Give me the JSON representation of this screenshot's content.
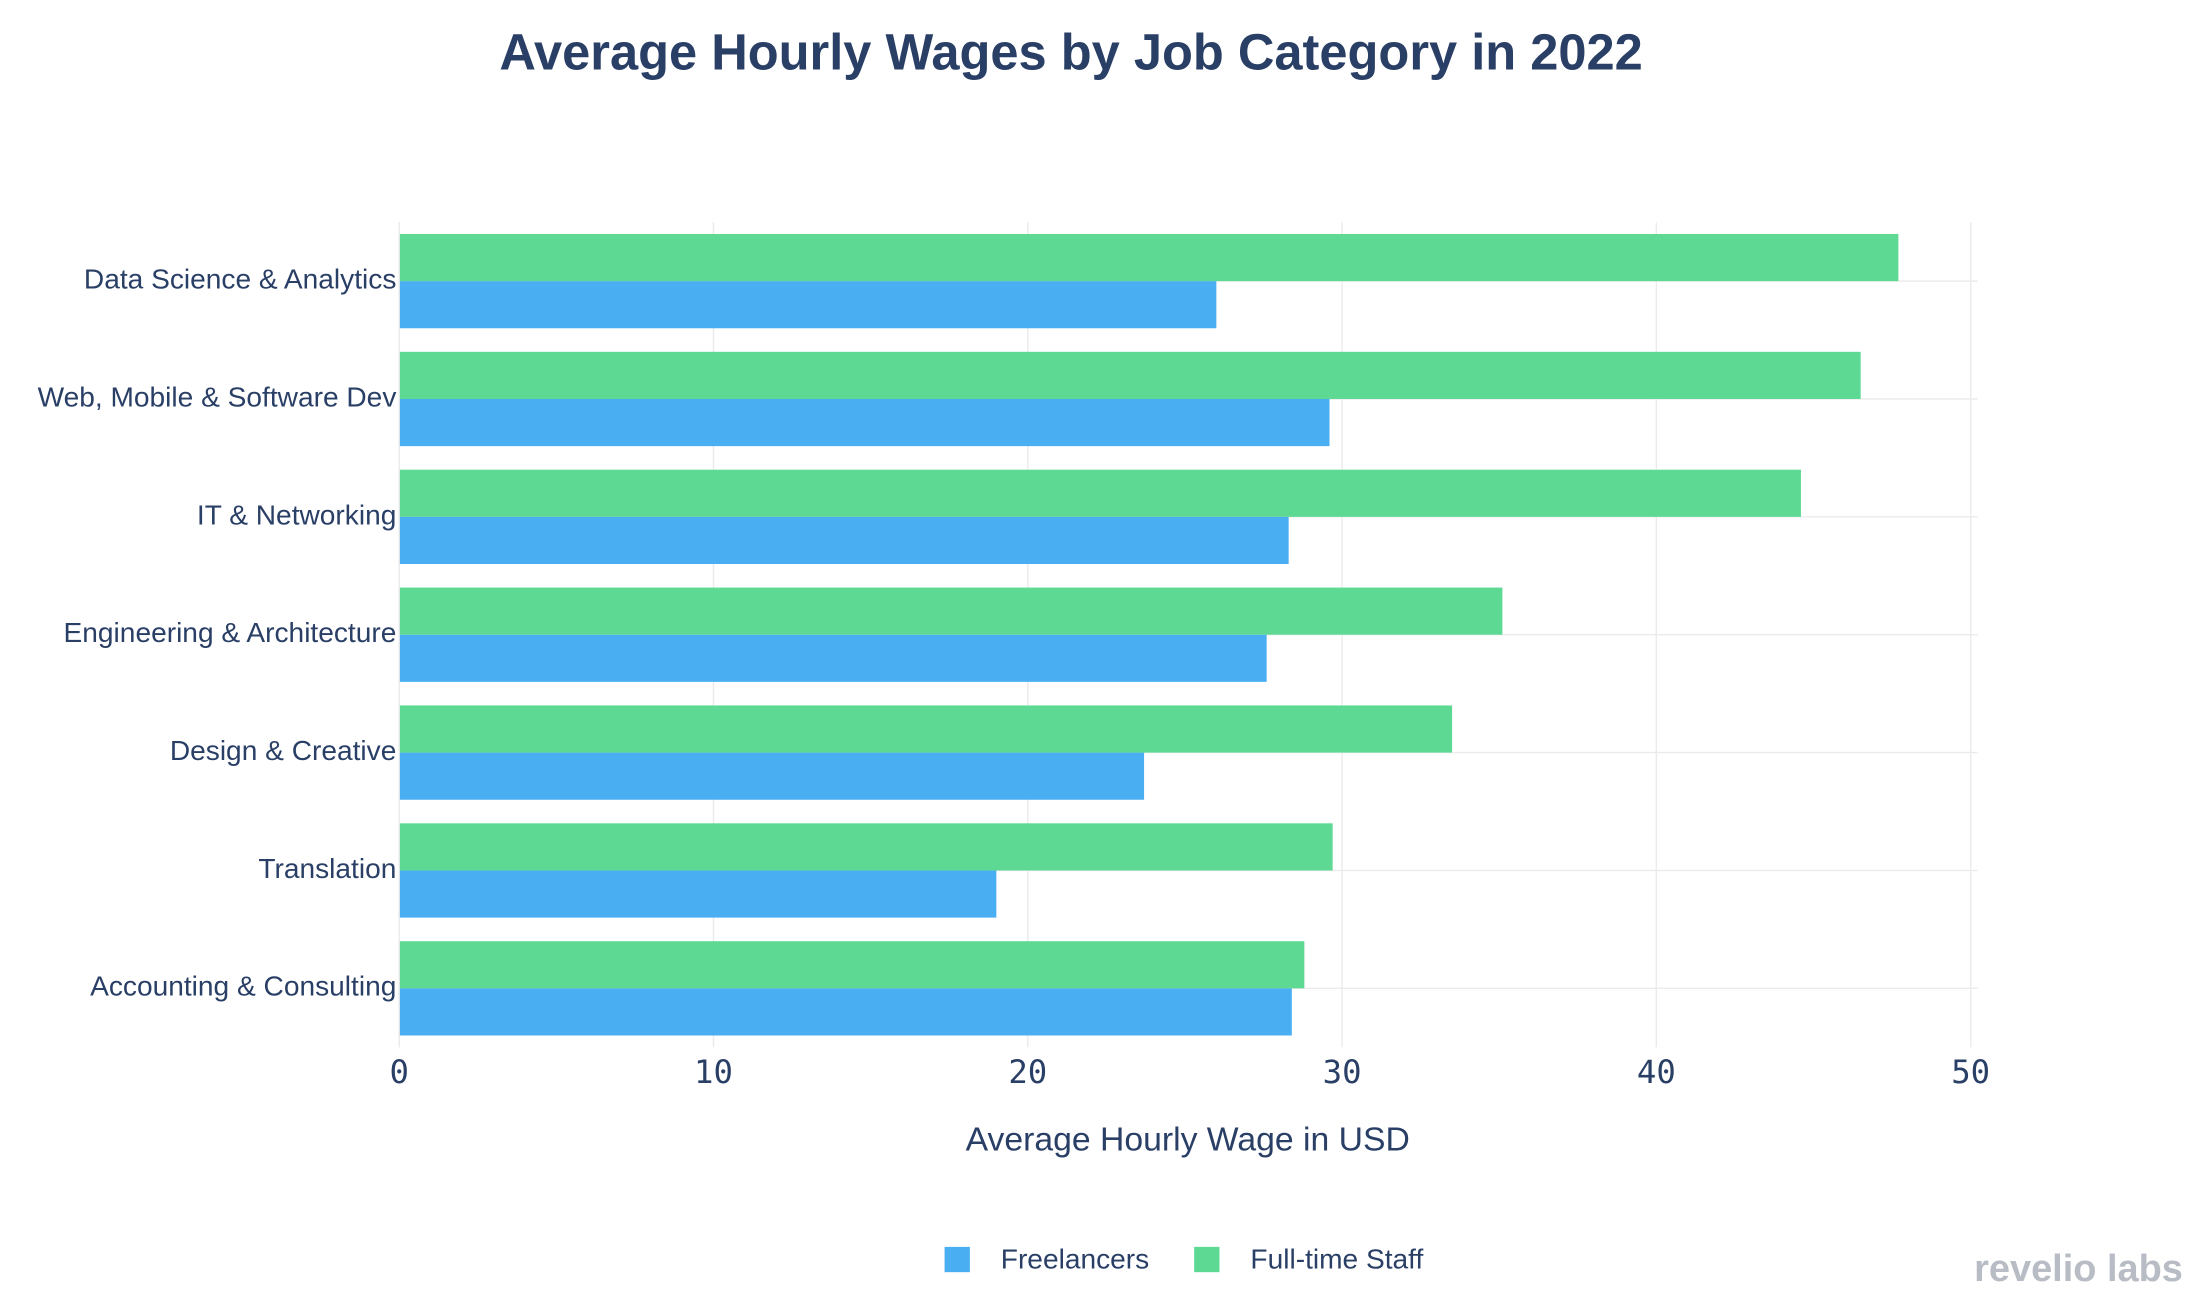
{
  "chart_data": {
    "type": "bar",
    "orientation": "horizontal",
    "title": "Average Hourly Wages by Job Category in 2022",
    "x_label": "Average Hourly Wage in USD",
    "categories": [
      "Data Science & Analytics",
      "Web, Mobile & Software Dev",
      "IT & Networking",
      "Engineering & Architecture",
      "Design & Creative",
      "Translation",
      "Accounting & Consulting"
    ],
    "series": [
      {
        "name": "Freelancers",
        "color": "#4aaef3",
        "values": [
          26.0,
          29.6,
          28.3,
          27.6,
          23.7,
          19.0,
          28.4
        ]
      },
      {
        "name": "Full-time Staff",
        "color": "#5dd994",
        "values": [
          47.7,
          46.5,
          44.6,
          35.1,
          33.5,
          29.7,
          28.8
        ]
      }
    ],
    "xlim": [
      0,
      50
    ],
    "xticks": [
      0,
      10,
      20,
      30,
      40,
      50
    ],
    "grid": true,
    "legend": "bottom",
    "watermark": "revelio labs"
  }
}
